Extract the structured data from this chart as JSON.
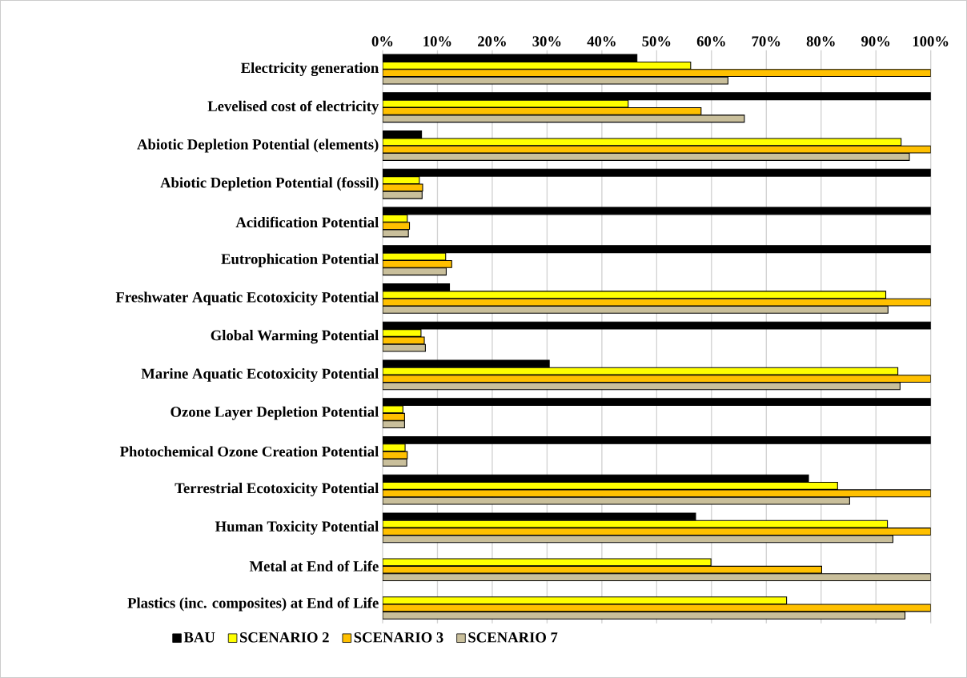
{
  "chart_data": {
    "type": "bar",
    "orientation": "horizontal",
    "categories": [
      "Electricity generation",
      "Levelised cost of electricity",
      "Abiotic Depletion Potential (elements)",
      "Abiotic Depletion Potential (fossil)",
      "Acidification Potential",
      "Eutrophication Potential",
      "Freshwater Aquatic Ecotoxicity Potential",
      "Global Warming Potential",
      "Marine Aquatic Ecotoxicity Potential",
      "Ozone Layer Depletion Potential",
      "Photochemical Ozone Creation Potential",
      "Terrestrial Ecotoxicity Potential",
      "Human Toxicity Potential",
      "Metal at End of Life",
      "Plastics (inc. composites) at End of Life"
    ],
    "series": [
      {
        "name": "BAU",
        "color": "#000000",
        "values": [
          46.4,
          100,
          7.1,
          100,
          100,
          100,
          12.2,
          100,
          30.4,
          100,
          100,
          77.7,
          57.1,
          null,
          null
        ]
      },
      {
        "name": "SCENARIO 2",
        "color": "#ffff00",
        "values": [
          56.2,
          44.8,
          94.6,
          6.7,
          4.5,
          11.5,
          91.8,
          7.0,
          94.0,
          3.7,
          4.1,
          83.0,
          92.1,
          59.9,
          73.7
        ]
      },
      {
        "name": "SCENARIO 3",
        "color": "#ffc000",
        "values": [
          100,
          58.1,
          100,
          7.3,
          4.9,
          12.6,
          100,
          7.6,
          100,
          4.0,
          4.5,
          100,
          100,
          80.1,
          100
        ]
      },
      {
        "name": "SCENARIO 7",
        "color": "#c9bf9b",
        "values": [
          63.0,
          66.0,
          96.1,
          7.2,
          4.7,
          11.6,
          92.2,
          7.8,
          94.4,
          4.0,
          4.4,
          85.2,
          93.1,
          100,
          95.3
        ]
      }
    ],
    "xlim": [
      0,
      100
    ],
    "xticks": [
      {
        "value": 0,
        "label": "0%"
      },
      {
        "value": 10,
        "label": "10%"
      },
      {
        "value": 20,
        "label": "20%"
      },
      {
        "value": 30,
        "label": "30%"
      },
      {
        "value": 40,
        "label": "40%"
      },
      {
        "value": 50,
        "label": "50%"
      },
      {
        "value": 60,
        "label": "60%"
      },
      {
        "value": 70,
        "label": "70%"
      },
      {
        "value": 80,
        "label": "80%"
      },
      {
        "value": 90,
        "label": "90%"
      },
      {
        "value": 100,
        "label": "100%"
      }
    ],
    "grid": "x",
    "legend": "bottom"
  }
}
